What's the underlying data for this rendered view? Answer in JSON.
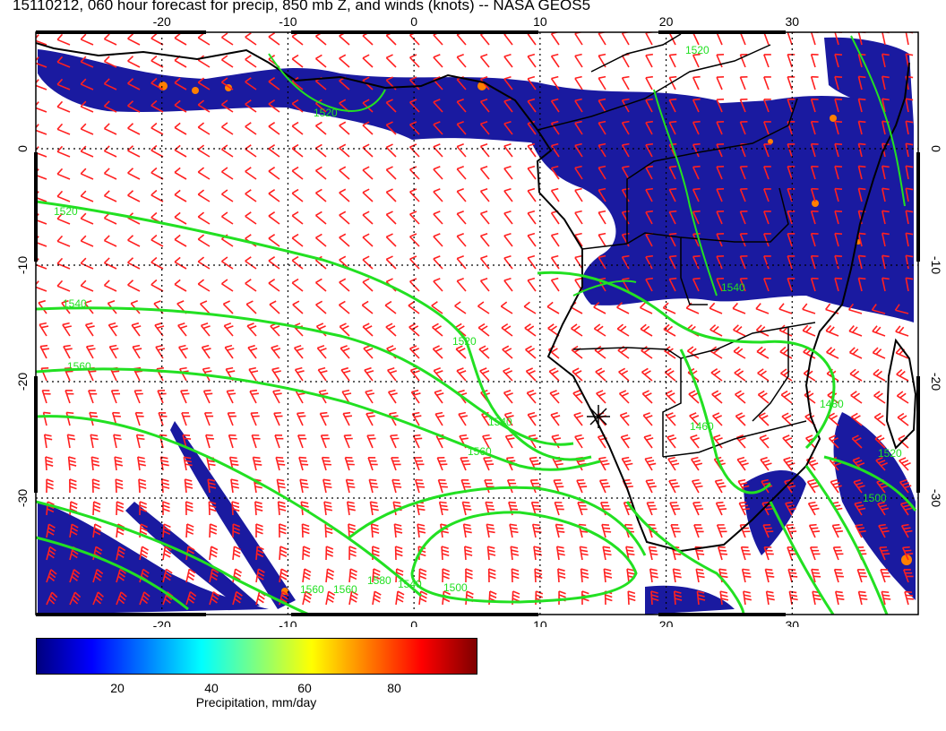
{
  "title": "15110212, 060 hour forecast for precip, 850 mb Z, and winds (knots) -- NASA GEOS5",
  "map": {
    "lon_range": [
      -30,
      40
    ],
    "lat_range": [
      -40,
      10
    ],
    "lon_ticks": [
      "-20",
      "-10",
      "0",
      "10",
      "20",
      "30"
    ],
    "lat_ticks": [
      "0",
      "-10",
      "-20",
      "-30"
    ],
    "contour_color": "#22e022",
    "wind_barb_color": "#ff2020",
    "precip_color": "#1a1aa0",
    "coastline_color": "#000000",
    "contour_labels": [
      "1520",
      "1520",
      "1540",
      "1560",
      "1520",
      "1540",
      "1560",
      "1560",
      "1560",
      "1580",
      "1540",
      "1500",
      "1520",
      "1540",
      "1460",
      "1480",
      "1500",
      "1520"
    ]
  },
  "colorbar": {
    "label": "Precipitation, mm/day",
    "ticks": [
      "20",
      "40",
      "60",
      "80"
    ],
    "colors": [
      "#00007f",
      "#0000ff",
      "#007fff",
      "#00ffff",
      "#7fff7f",
      "#ffff00",
      "#ff7f00",
      "#ff0000",
      "#7f0000"
    ]
  }
}
